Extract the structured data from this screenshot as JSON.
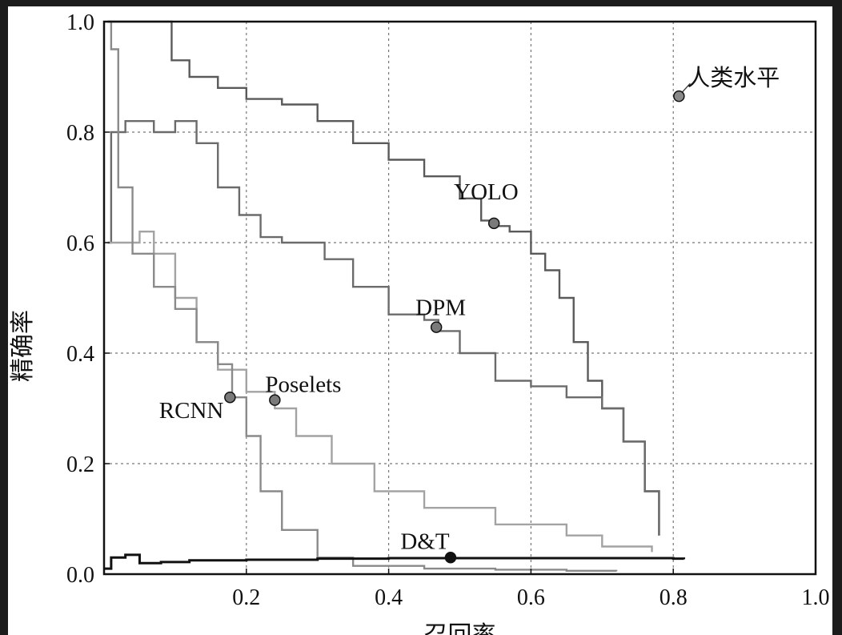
{
  "chart_data": {
    "type": "line",
    "title": "",
    "xlabel": "召回率",
    "ylabel": "精确率",
    "xlim": [
      0,
      1.0
    ],
    "ylim": [
      0,
      1.0
    ],
    "grid": true,
    "xticks": [
      0.2,
      0.4,
      0.6,
      0.8,
      1.0
    ],
    "xtick_labels": [
      "0.2",
      "0.4",
      "0.6",
      "0.8",
      "1.0"
    ],
    "yticks": [
      0.0,
      0.2,
      0.4,
      0.6,
      0.8,
      1.0
    ],
    "ytick_labels": [
      "0.0",
      "0.2",
      "0.4",
      "0.6",
      "0.8",
      "1.0"
    ],
    "series": [
      {
        "name": "YOLO",
        "color": "#5a5a5a",
        "x": [
          0.005,
          0.09,
          0.095,
          0.12,
          0.16,
          0.2,
          0.25,
          0.3,
          0.35,
          0.4,
          0.45,
          0.5,
          0.53,
          0.55,
          0.57,
          0.6,
          0.62,
          0.64,
          0.66,
          0.68,
          0.7,
          0.73,
          0.76,
          0.78
        ],
        "y": [
          1.0,
          1.0,
          0.93,
          0.9,
          0.88,
          0.86,
          0.85,
          0.82,
          0.78,
          0.75,
          0.72,
          0.68,
          0.64,
          0.63,
          0.62,
          0.58,
          0.55,
          0.5,
          0.42,
          0.35,
          0.3,
          0.24,
          0.15,
          0.07
        ],
        "marker": {
          "x": 0.548,
          "y": 0.635,
          "label": "YOLO"
        }
      },
      {
        "name": "DPM",
        "color": "#6b6b6b",
        "x": [
          0.005,
          0.01,
          0.03,
          0.07,
          0.1,
          0.13,
          0.16,
          0.19,
          0.22,
          0.25,
          0.28,
          0.31,
          0.35,
          0.4,
          0.45,
          0.47,
          0.5,
          0.55,
          0.6,
          0.65,
          0.7,
          0.73,
          0.76,
          0.78
        ],
        "y": [
          0.6,
          0.8,
          0.82,
          0.8,
          0.82,
          0.78,
          0.7,
          0.65,
          0.61,
          0.6,
          0.6,
          0.57,
          0.52,
          0.47,
          0.46,
          0.44,
          0.4,
          0.35,
          0.34,
          0.32,
          0.3,
          0.24,
          0.15,
          0.07
        ],
        "marker": {
          "x": 0.467,
          "y": 0.447,
          "label": "DPM"
        }
      },
      {
        "name": "Poselets",
        "color": "#a3a3a3",
        "x": [
          0.005,
          0.01,
          0.03,
          0.05,
          0.07,
          0.1,
          0.13,
          0.16,
          0.2,
          0.24,
          0.27,
          0.32,
          0.38,
          0.45,
          0.55,
          0.65,
          0.7,
          0.77
        ],
        "y": [
          0.6,
          0.6,
          0.6,
          0.62,
          0.58,
          0.5,
          0.42,
          0.37,
          0.33,
          0.3,
          0.25,
          0.2,
          0.15,
          0.12,
          0.09,
          0.07,
          0.05,
          0.04
        ],
        "marker": {
          "x": 0.24,
          "y": 0.315,
          "label": "Poselets"
        }
      },
      {
        "name": "RCNN",
        "color": "#8a8a8a",
        "x": [
          0.005,
          0.01,
          0.02,
          0.04,
          0.07,
          0.1,
          0.13,
          0.16,
          0.18,
          0.2,
          0.22,
          0.25,
          0.3,
          0.35,
          0.45,
          0.55,
          0.65,
          0.72
        ],
        "y": [
          1.0,
          0.95,
          0.7,
          0.58,
          0.52,
          0.48,
          0.42,
          0.38,
          0.32,
          0.25,
          0.15,
          0.08,
          0.03,
          0.015,
          0.01,
          0.008,
          0.006,
          0.005
        ],
        "marker": {
          "x": 0.177,
          "y": 0.32,
          "label": "RCNN"
        }
      },
      {
        "name": "D&T",
        "color": "#111111",
        "x": [
          0.0,
          0.01,
          0.03,
          0.05,
          0.08,
          0.12,
          0.2,
          0.3,
          0.4,
          0.5,
          0.6,
          0.7,
          0.8,
          0.815
        ],
        "y": [
          0.01,
          0.03,
          0.035,
          0.02,
          0.022,
          0.025,
          0.026,
          0.028,
          0.029,
          0.029,
          0.029,
          0.029,
          0.028,
          0.027
        ],
        "marker": {
          "x": 0.487,
          "y": 0.03,
          "label": "D&T"
        }
      }
    ],
    "annotations": [
      {
        "text": "人类水平",
        "x": 0.808,
        "y": 0.865
      }
    ]
  }
}
